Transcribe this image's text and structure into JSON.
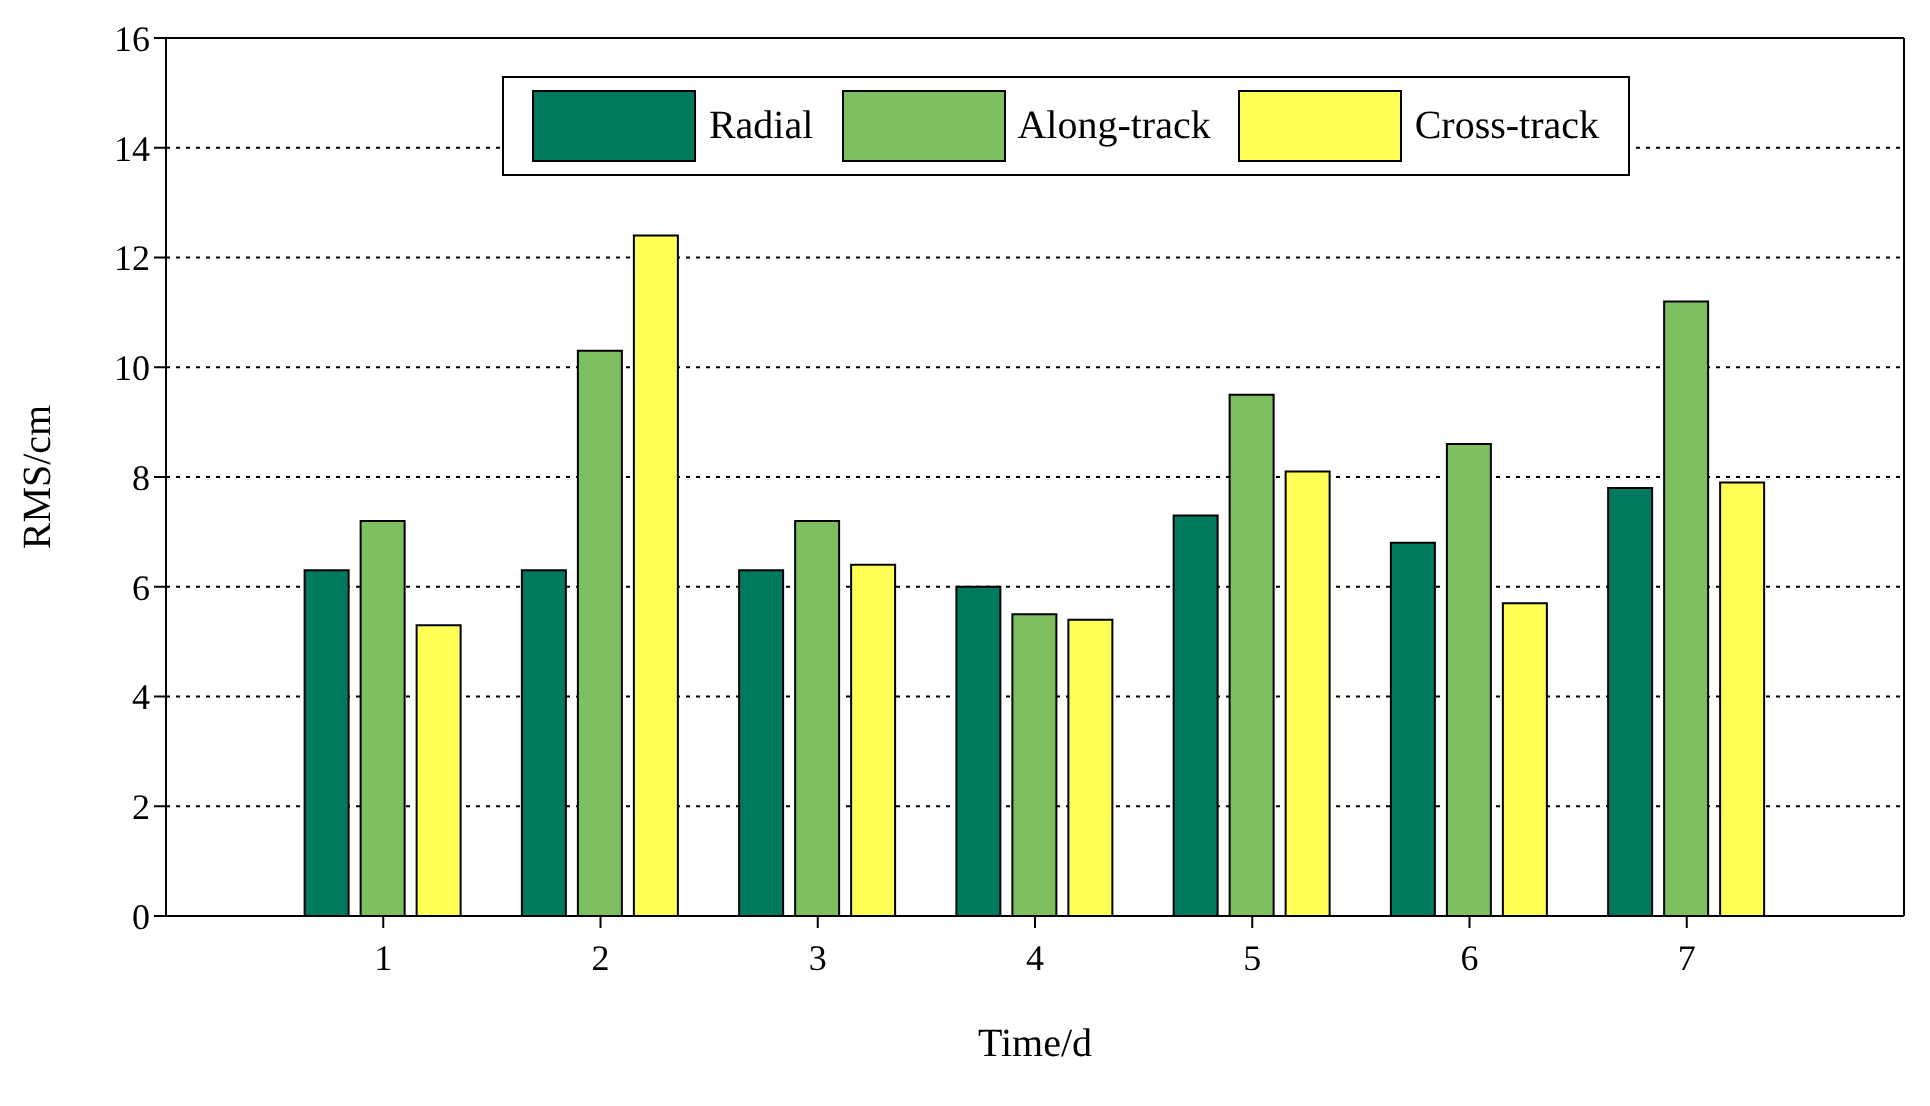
{
  "chart_data": {
    "type": "bar",
    "xlabel": "Time/d",
    "ylabel": "RMS/cm",
    "x": [
      1,
      2,
      3,
      4,
      5,
      6,
      7
    ],
    "xlim": [
      0,
      8
    ],
    "xticks": [
      1,
      2,
      3,
      4,
      5,
      6,
      7
    ],
    "ylim": [
      0,
      16
    ],
    "yticks": [
      0,
      2,
      4,
      6,
      8,
      10,
      12,
      14,
      16
    ],
    "series": [
      {
        "name": "Radial",
        "color": "#007a5e",
        "values": [
          6.3,
          6.3,
          6.3,
          6.0,
          7.3,
          6.8,
          7.8
        ]
      },
      {
        "name": "Along-track",
        "color": "#7dbe5f",
        "values": [
          7.2,
          10.3,
          7.2,
          5.5,
          9.5,
          8.6,
          11.2
        ]
      },
      {
        "name": "Cross-track",
        "color": "#ffff55",
        "values": [
          5.3,
          12.4,
          6.4,
          5.4,
          8.1,
          5.7,
          7.9
        ]
      }
    ],
    "grid": "y",
    "legend": "top"
  }
}
